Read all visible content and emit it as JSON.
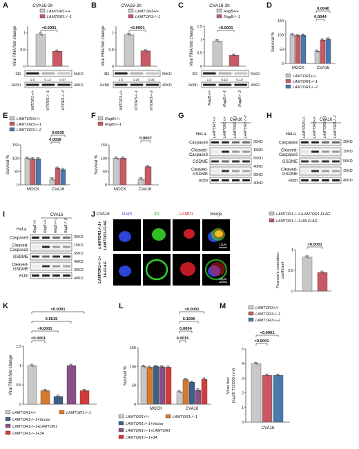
{
  "colors": {
    "wt": "#c8c8c8",
    "ko1": "#c85a64",
    "ko2": "#4a78b0",
    "vector": "#3f5f86",
    "rescue": "#8a4f86",
    "tripleA": "#d43a3a",
    "orange": "#d8782c",
    "dapi": "#2a45d8",
    "green3d": "#35d22a",
    "lamp1": "#e0202a",
    "merge": "#e8c21e"
  },
  "icons": [
    "scale-bar-icon"
  ],
  "panels": {
    "A": {
      "letter": "A",
      "title": "CVA16-3h",
      "legend": [
        "LAMTOR1+/+",
        "LAMTOR1-/--1"
      ],
      "ylabel": "Viral RNA fold change",
      "pvalue": "<0.0001",
      "blot_3d": "3D",
      "blot_actin": "Actin",
      "kd_top": "55KD",
      "kd_bottom": "40KD",
      "quant": [
        "1.0",
        "0.13",
        "0.07"
      ],
      "lanes": [
        "LAMTOR1+/+",
        "LAMTOR1-/--1",
        "LAMTOR1-/--2"
      ]
    },
    "B": {
      "letter": "B",
      "title": "CVA16-3h",
      "legend": [
        "LAMTOR3+/+",
        "LAMTOR3-/--1"
      ],
      "ylabel": "Viral RNA fold change",
      "pvalue": "<0.0001",
      "blot_3d": "3D",
      "blot_actin": "Actin",
      "kd_top": "55KD",
      "kd_bottom": "40KD",
      "quant": [
        "1.0",
        "0.24",
        "0.34"
      ],
      "lanes": [
        "LAMTOR3+/+",
        "LAMTOR3-/--1",
        "LAMTOR3-/--2"
      ]
    },
    "C": {
      "letter": "C",
      "title": "CVA16-3h",
      "legend": [
        "RagB+/+",
        "RagB-/--1"
      ],
      "ylabel": "Viral RNA fold change",
      "pvalue": "<0.0001",
      "blot_3d": "3D",
      "blot_actin": "Actin",
      "kd_top": "55KD",
      "kd_bottom": "40KD",
      "quant": [
        "1.0",
        "0.13",
        "0.10"
      ],
      "lanes": [
        "RagB+/+",
        "RagB-/--1",
        "RagB-/--2"
      ]
    },
    "D": {
      "letter": "D",
      "ylabel": "Survival %",
      "groups": [
        "MOCK",
        "CVA16"
      ],
      "pvalues": [
        "0.0040",
        "0.0044"
      ],
      "legend": [
        "LAMTOR1+/+",
        "LAMTOR1-/--1",
        "LAMTOR1-/--2"
      ]
    },
    "E": {
      "letter": "E",
      "ylabel": "Survival %",
      "groups": [
        "MOCK",
        "CVA16"
      ],
      "pvalues": [
        "0.0030",
        "0.0018"
      ],
      "legend": [
        "LAMTOR3+/+",
        "LAMTOR3-/--1",
        "LAMTOR3-/--2"
      ]
    },
    "F": {
      "letter": "F",
      "ylabel": "Survival %",
      "groups": [
        "MOCK",
        "CVA16"
      ],
      "pvalues": [
        "0.0007"
      ],
      "legend": [
        "RagB+/+",
        "RagB-/--1"
      ]
    },
    "G": {
      "letter": "G",
      "virus": "CVA16",
      "cell": "HeLa",
      "lanes": [
        "LAMTOR1+/+",
        "LAMTOR1+/+",
        "LAMTOR1-/--1",
        "LAMTOR1-/--2"
      ],
      "rows": [
        "Caspase3",
        "Cleaved-Caspase3",
        "GSDME",
        "Cleaved-GSDME",
        "Actin"
      ],
      "kd": [
        "35KD",
        "15KD",
        "55KD",
        "40KD",
        "35KD",
        "40KD"
      ]
    },
    "H": {
      "letter": "H",
      "virus": "CVA16",
      "cell": "HeLa",
      "lanes": [
        "LAMTOR3+/+",
        "LAMTOR3+/+",
        "LAMTOR3-/--1",
        "LAMTOR3-/--2"
      ],
      "rows": [
        "Caspase3",
        "Cleaved-Caspase3",
        "GSDME",
        "Cleaved-GSDME",
        "Actin"
      ],
      "kd": [
        "35KD",
        "15KD",
        "55KD",
        "35KD",
        "40KD"
      ]
    },
    "I": {
      "letter": "I",
      "virus": "CVA16",
      "cell": "HeLa",
      "lanes": [
        "RagB+/+",
        "RagB+/+",
        "RagB-/--1",
        "RagB-/--2"
      ],
      "rows": [
        "Caspase3",
        "Cleaved-Caspase3",
        "GSDME",
        "Cleaved-GSDME",
        "Actin"
      ],
      "kd": [
        "35KD",
        "15KD",
        "55KD",
        "40KD",
        "35KD",
        "40KD"
      ]
    },
    "J": {
      "letter": "J",
      "virus": "CVA16",
      "channels": [
        "DAPI",
        "3D",
        "LAMP1",
        "Merge"
      ],
      "row_labels": [
        "LAMTOR1-/--1+ LAMTOR1-FLAG",
        "LAMTOR1-/--1+ 3A-FLAG"
      ],
      "scale": "10μm",
      "legend": [
        "LAMTOR1-/--1+LAMTOR1-FLAG",
        "LAMTOR1-/--1+3A-FLAG"
      ],
      "ylabel": "Pearson's correlation coefficient",
      "pvalue": "<0.0001"
    },
    "K": {
      "letter": "K",
      "ylabel": "Viral RNA fold change",
      "pvalues": [
        "<0.0001",
        "0.5615",
        "<0.0001",
        "<0.0001"
      ],
      "legend": [
        "LAMTOR1+/+",
        "LAMTOR1-/--1",
        "LAMTOR1-/--1+Vector",
        "LAMTOR1-/--1+LAMTOR1",
        "LAMTOR1-/--1+3A"
      ]
    },
    "L": {
      "letter": "L",
      "ylabel": "Survival %",
      "groups": [
        "MOCK",
        "CVA16"
      ],
      "pvalues": [
        "<0.0001",
        "0.1096",
        "0.0004",
        "0.0015"
      ],
      "legend": [
        "LAMTOR1+/+",
        "LAMTOR1-/--1",
        "LAMTOR1-/--1+Vector",
        "LAMTOR1-/--1+LAMTOR1",
        "LAMTOR1-/--1+3A"
      ]
    },
    "M": {
      "letter": "M",
      "ylabel": "Virus titer (log10 TCID50 / ml)",
      "group": "CVA16",
      "pvalues": [
        "<0.0001",
        "<0.0001"
      ],
      "legend": [
        "LAMTOR3+/+",
        "LAMTOR3-/--1",
        "LAMTOR3-/--2"
      ]
    }
  },
  "chart_data": [
    {
      "id": "A",
      "type": "bar",
      "categories": [
        "LAMTOR1+/+",
        "LAMTOR1-/--1"
      ],
      "values": [
        0.96,
        0.45
      ],
      "ylim": [
        0,
        1.2
      ],
      "yticks": [
        0,
        0.5,
        1.0
      ]
    },
    {
      "id": "B",
      "type": "bar",
      "categories": [
        "LAMTOR3+/+",
        "LAMTOR3-/--1"
      ],
      "values": [
        0.95,
        0.46
      ],
      "ylim": [
        0,
        1.2
      ],
      "yticks": [
        0,
        0.5,
        1.0
      ]
    },
    {
      "id": "C",
      "type": "bar",
      "categories": [
        "RagB+/+",
        "RagB-/--1"
      ],
      "values": [
        0.95,
        0.41
      ],
      "ylim": [
        0,
        1.5
      ],
      "yticks": [
        0,
        0.5,
        1.0,
        1.5
      ]
    },
    {
      "id": "D",
      "type": "bar",
      "categories": [
        "MOCK",
        "CVA16"
      ],
      "series": [
        {
          "name": "LAMTOR1+/+",
          "values": [
            100,
            43
          ]
        },
        {
          "name": "LAMTOR1-/--1",
          "values": [
            98,
            82
          ]
        },
        {
          "name": "LAMTOR1-/--2",
          "values": [
            99,
            85
          ]
        }
      ],
      "ylim": [
        0,
        150
      ],
      "yticks": [
        0,
        50,
        100,
        150
      ]
    },
    {
      "id": "E",
      "type": "bar",
      "categories": [
        "MOCK",
        "CVA16"
      ],
      "series": [
        {
          "name": "LAMTOR3+/+",
          "values": [
            100,
            22
          ]
        },
        {
          "name": "LAMTOR3-/--1",
          "values": [
            98,
            62
          ]
        },
        {
          "name": "LAMTOR3-/--2",
          "values": [
            97,
            57
          ]
        }
      ],
      "ylim": [
        0,
        150
      ],
      "yticks": [
        0,
        50,
        100,
        150
      ]
    },
    {
      "id": "F",
      "type": "bar",
      "categories": [
        "MOCK",
        "CVA16"
      ],
      "series": [
        {
          "name": "RagB+/+",
          "values": [
            100,
            22
          ]
        },
        {
          "name": "RagB-/--1",
          "values": [
            100,
            68
          ]
        }
      ],
      "ylim": [
        0,
        150
      ],
      "yticks": [
        0,
        50,
        100,
        150
      ]
    },
    {
      "id": "J",
      "type": "bar",
      "categories": [
        "LAMTOR1-/--1+LAMTOR1-FLAG",
        "LAMTOR1-/--1+3A-FLAG"
      ],
      "values": [
        0.82,
        0.45
      ],
      "ylim": [
        0,
        1.0
      ],
      "yticks": [
        0.0,
        0.5,
        1.0
      ]
    },
    {
      "id": "K",
      "type": "bar",
      "categories": [
        "LAMTOR1+/+",
        "LAMTOR1-/--1",
        "LAMTOR1-/--1+Vector",
        "LAMTOR1-/--1+LAMTOR1",
        "LAMTOR1-/--1+3A"
      ],
      "values": [
        1.0,
        0.35,
        0.2,
        1.0,
        0.35
      ],
      "ylim": [
        0,
        1.5
      ],
      "yticks": [
        0,
        0.5,
        1.0,
        1.5
      ]
    },
    {
      "id": "L",
      "type": "bar",
      "categories": [
        "MOCK",
        "CVA16"
      ],
      "series": [
        {
          "name": "LAMTOR1+/+",
          "values": [
            100,
            33
          ]
        },
        {
          "name": "LAMTOR1-/--1",
          "values": [
            98,
            65
          ]
        },
        {
          "name": "LAMTOR1-/--1+Vector",
          "values": [
            100,
            58
          ]
        },
        {
          "name": "LAMTOR1-/--1+LAMTOR1",
          "values": [
            99,
            37
          ]
        },
        {
          "name": "LAMTOR1-/--1+3A",
          "values": [
            98,
            66
          ]
        }
      ],
      "ylim": [
        0,
        150
      ],
      "yticks": [
        0,
        50,
        100,
        150
      ]
    },
    {
      "id": "M",
      "type": "bar",
      "categories": [
        "CVA16"
      ],
      "series": [
        {
          "name": "LAMTOR3+/+",
          "values": [
            4.0
          ]
        },
        {
          "name": "LAMTOR3-/--1",
          "values": [
            3.2
          ]
        },
        {
          "name": "LAMTOR3-/--2",
          "values": [
            3.2
          ]
        }
      ],
      "ylim": [
        0,
        5
      ],
      "yticks": [
        0,
        1,
        2,
        3,
        4,
        5
      ]
    }
  ]
}
